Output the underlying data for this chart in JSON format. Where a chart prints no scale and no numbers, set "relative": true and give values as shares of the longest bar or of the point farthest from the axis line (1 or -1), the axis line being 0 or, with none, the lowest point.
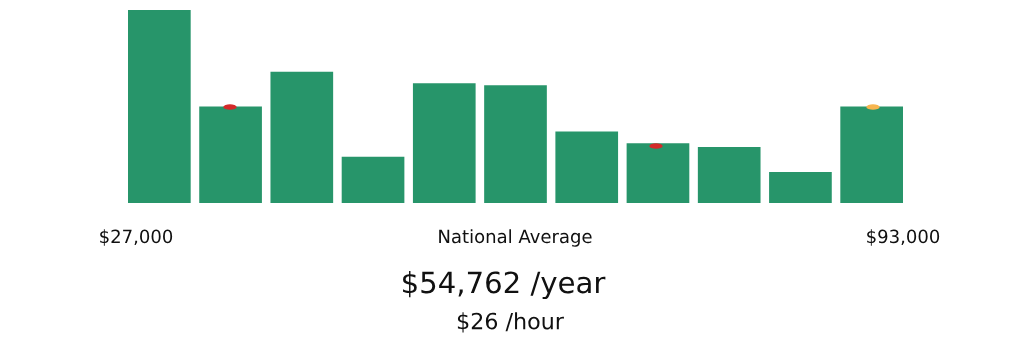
{
  "chart_data": {
    "type": "bar",
    "relative": true,
    "categories": [
      null,
      null,
      null,
      null,
      null,
      null,
      null,
      null,
      null,
      null,
      null
    ],
    "series": [
      {
        "color": "#27956a",
        "values": [
          1.0,
          0.5,
          0.68,
          0.24,
          0.62,
          0.61,
          0.37,
          0.31,
          0.29,
          0.16,
          0.5
        ]
      }
    ],
    "annotations": [
      "$27,000",
      "National Average",
      "$93,000",
      "$54,762 /year",
      "$26 /hour"
    ]
  }
}
